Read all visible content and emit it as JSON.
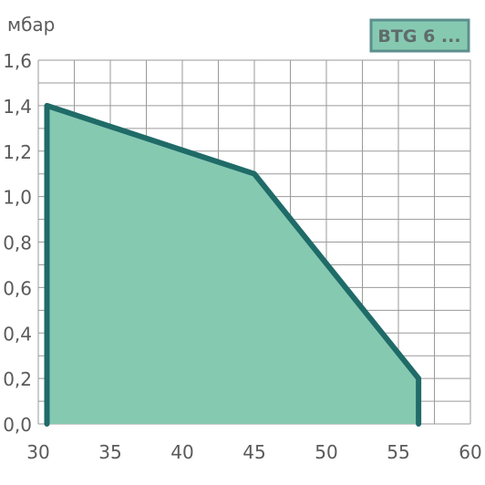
{
  "chart_data": {
    "type": "area",
    "unit_label": "мбар",
    "legend_label": "BTG 6 ...",
    "xlim": [
      30,
      60
    ],
    "ylim": [
      0,
      1.6
    ],
    "x_ticks": [
      30,
      35,
      40,
      45,
      50,
      55,
      60
    ],
    "x_tick_labels": [
      "30",
      "35",
      "40",
      "45",
      "50",
      "55",
      "60"
    ],
    "y_ticks": [
      0,
      0.2,
      0.4,
      0.6,
      0.8,
      1.0,
      1.2,
      1.4,
      1.6
    ],
    "y_tick_labels": [
      "0,0",
      "0,2",
      "0,4",
      "0,6",
      "0,8",
      "1,0",
      "1,2",
      "1,4",
      "1,6"
    ],
    "x_minor_step": 2.5,
    "grid": true,
    "series": [
      {
        "x": [
          30.6,
          30.6,
          45,
          56.4,
          56.4
        ],
        "y": [
          0,
          1.4,
          1.1,
          0.2,
          0
        ]
      }
    ],
    "colors": {
      "fill": "#86c9b1",
      "stroke": "#1f6b68",
      "grid": "#9a9a9a",
      "legend_border": "#5c8f8f",
      "legend_bg": "#86c9b1"
    }
  }
}
